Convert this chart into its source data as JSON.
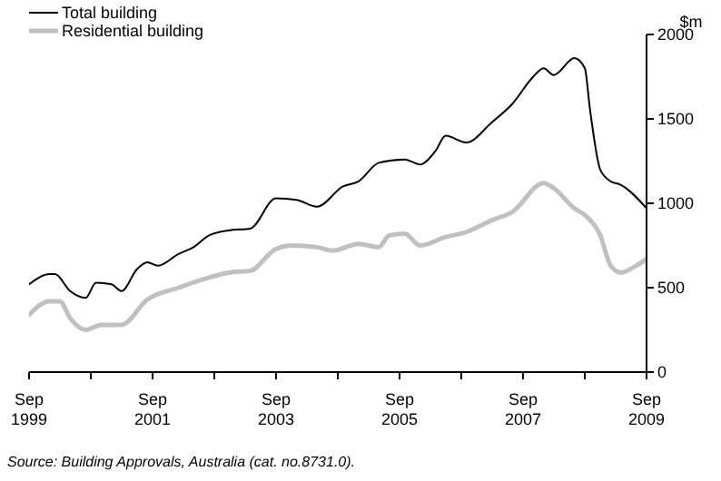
{
  "chart_data": {
    "type": "line",
    "ylabel": "$m",
    "annotations": [
      "Source: Building Approvals, Australia (cat. no.8731.0)."
    ],
    "xlim": [
      "1999-09",
      "2009-09"
    ],
    "xticks": [
      {
        "value": "1999-09",
        "label": "Sep 1999"
      },
      {
        "value": "2000-09",
        "label": null
      },
      {
        "value": "2001-09",
        "label": "Sep 2001"
      },
      {
        "value": "2002-09",
        "label": null
      },
      {
        "value": "2003-09",
        "label": "Sep 2003"
      },
      {
        "value": "2004-09",
        "label": null
      },
      {
        "value": "2005-09",
        "label": "Sep 2005"
      },
      {
        "value": "2006-09",
        "label": null
      },
      {
        "value": "2007-09",
        "label": "Sep 2007"
      },
      {
        "value": "2008-09",
        "label": null
      },
      {
        "value": "2009-09",
        "label": "Sep 2009"
      }
    ],
    "ylim": [
      0,
      2000
    ],
    "yticks": [
      0,
      500,
      1000,
      1500,
      2000
    ],
    "grid": false,
    "legend": "top left",
    "marker": "none",
    "line_style": "solid",
    "series": [
      {
        "name": "Total building",
        "color": "#000000",
        "x": [
          "1999-09",
          "2000-01",
          "2000-02",
          "2000-05",
          "2000-08",
          "2000-10",
          "2001-01",
          "2001-03",
          "2001-06",
          "2001-08",
          "2001-10",
          "2002-02",
          "2002-05",
          "2002-08",
          "2002-12",
          "2003-04",
          "2003-09",
          "2004-01",
          "2004-05",
          "2004-10",
          "2005-01",
          "2005-05",
          "2005-10",
          "2006-01",
          "2006-04",
          "2006-06",
          "2006-10",
          "2007-03",
          "2007-07",
          "2007-11",
          "2008-01",
          "2008-03",
          "2008-07",
          "2008-09",
          "2008-10",
          "2008-12",
          "2009-02",
          "2009-04",
          "2009-09"
        ],
        "values": [
          520,
          580,
          580,
          480,
          440,
          530,
          520,
          480,
          610,
          650,
          630,
          700,
          740,
          810,
          840,
          850,
          1030,
          1020,
          980,
          1100,
          1130,
          1240,
          1260,
          1230,
          1310,
          1400,
          1360,
          1480,
          1590,
          1750,
          1800,
          1760,
          1860,
          1800,
          1560,
          1200,
          1130,
          1110,
          970
        ]
      },
      {
        "name": "Residential building",
        "color": "#c0c0c0",
        "x": [
          "1999-09",
          "2000-01",
          "2000-03",
          "2000-05",
          "2000-08",
          "2000-11",
          "2001-03",
          "2001-08",
          "2002-02",
          "2002-08",
          "2002-12",
          "2003-04",
          "2003-09",
          "2003-12",
          "2004-05",
          "2004-08",
          "2005-01",
          "2005-05",
          "2005-07",
          "2005-10",
          "2006-01",
          "2006-06",
          "2006-10",
          "2007-03",
          "2007-07",
          "2008-01",
          "2008-03",
          "2008-07",
          "2008-09",
          "2008-12",
          "2009-02",
          "2009-04",
          "2009-07",
          "2009-09"
        ],
        "values": [
          340,
          420,
          420,
          320,
          250,
          280,
          280,
          430,
          500,
          560,
          590,
          600,
          730,
          750,
          740,
          720,
          760,
          740,
          810,
          820,
          750,
          800,
          830,
          900,
          950,
          1120,
          1090,
          970,
          930,
          810,
          630,
          590,
          630,
          670
        ]
      }
    ]
  }
}
